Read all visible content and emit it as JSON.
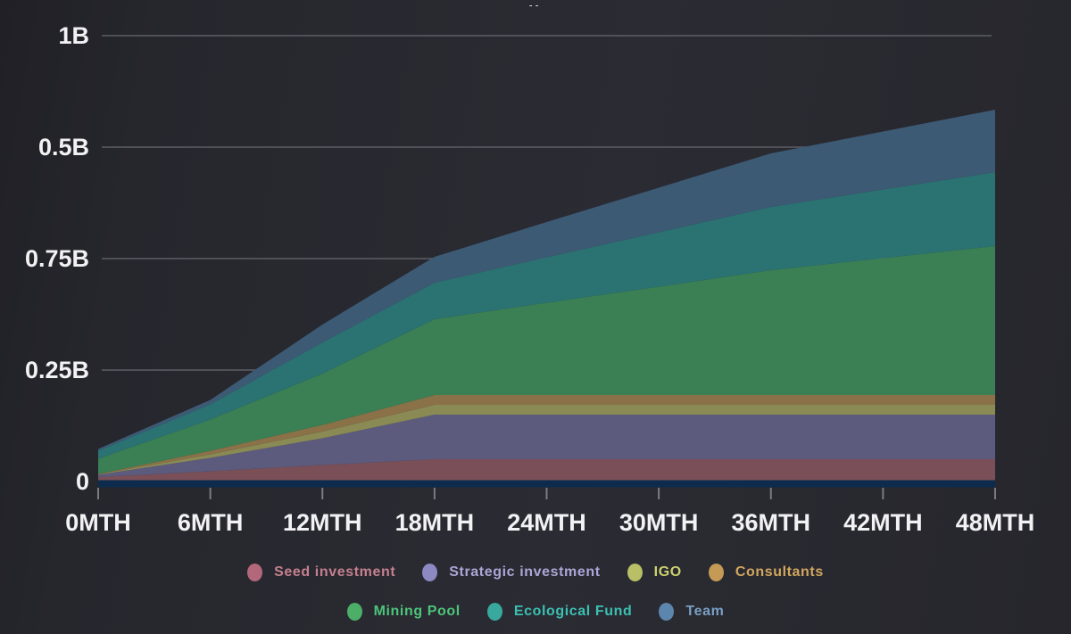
{
  "page": {
    "clipped_title_fragment": "y,"
  },
  "chart_data": {
    "type": "area",
    "stacked": true,
    "title": "",
    "x_label": "",
    "y_label": "",
    "x_unit": "months",
    "y_unit": "B (billions of tokens)",
    "x": [
      0,
      6,
      12,
      18,
      24,
      30,
      36,
      42,
      48
    ],
    "x_tick_labels": [
      "0MTH",
      "6MTH",
      "12MTH",
      "18MTH",
      "24MTH",
      "30MTH",
      "36MTH",
      "42MTH",
      "48MTH"
    ],
    "y_tick_labels_top_to_bottom": [
      "1B",
      "0.5B",
      "0.75B",
      "0.25B",
      "0"
    ],
    "grid": true,
    "legend_position": "bottom",
    "values_unit_note": "series values in millions of tokens; 1000 = 1B on axis",
    "series": [
      {
        "name": "Seed investment",
        "slug": "seed-investment",
        "area_color": "#7a4f58",
        "dot_color": "#b2687a",
        "text_color": "#c5808f",
        "legend_row": 1,
        "values": [
          10,
          23,
          37,
          50,
          50,
          50,
          50,
          50,
          50
        ]
      },
      {
        "name": "Strategic investment",
        "slug": "strategic-investment",
        "area_color": "#5c5a7d",
        "dot_color": "#8d89c2",
        "text_color": "#aaa7d6",
        "legend_row": 1,
        "values": [
          5,
          30,
          60,
          100,
          100,
          100,
          100,
          100,
          100
        ]
      },
      {
        "name": "IGO",
        "slug": "igo",
        "area_color": "#8a8a55",
        "dot_color": "#b9bf66",
        "text_color": "#ccd26e",
        "legend_row": 1,
        "values": [
          1,
          8,
          15,
          22,
          22,
          22,
          22,
          22,
          22
        ]
      },
      {
        "name": "Consultants",
        "slug": "consultants",
        "area_color": "#8a7148",
        "dot_color": "#c49a55",
        "text_color": "#d2a75e",
        "legend_row": 1,
        "values": [
          1,
          8,
          15,
          22,
          22,
          22,
          22,
          22,
          22
        ]
      },
      {
        "name": "Mining Pool",
        "slug": "mining-pool",
        "area_color": "#3a8054",
        "dot_color": "#4cae67",
        "text_color": "#4cc57a",
        "legend_row": 2,
        "values": [
          34,
          70,
          115,
          170,
          207,
          243,
          280,
          307,
          334
        ]
      },
      {
        "name": "Ecological Fund",
        "slug": "ecological-fund",
        "area_color": "#2b7272",
        "dot_color": "#39a89d",
        "text_color": "#3bc0b2",
        "legend_row": 2,
        "values": [
          18,
          34,
          70,
          82,
          102,
          122,
          142,
          154,
          166
        ]
      },
      {
        "name": "Team",
        "slug": "team",
        "area_color": "#3d5a75",
        "dot_color": "#5c86ad",
        "text_color": "#7aa0c4",
        "legend_row": 2,
        "values": [
          4,
          10,
          40,
          58,
          79,
          100,
          120,
          130,
          140
        ]
      }
    ],
    "colors": {
      "background": "#26262d",
      "gridline": "#5d5f66",
      "axis_text": "#f2f2f4",
      "tick_mark": "#7a7c82",
      "baseline_bar": "#0d2c4d"
    }
  }
}
